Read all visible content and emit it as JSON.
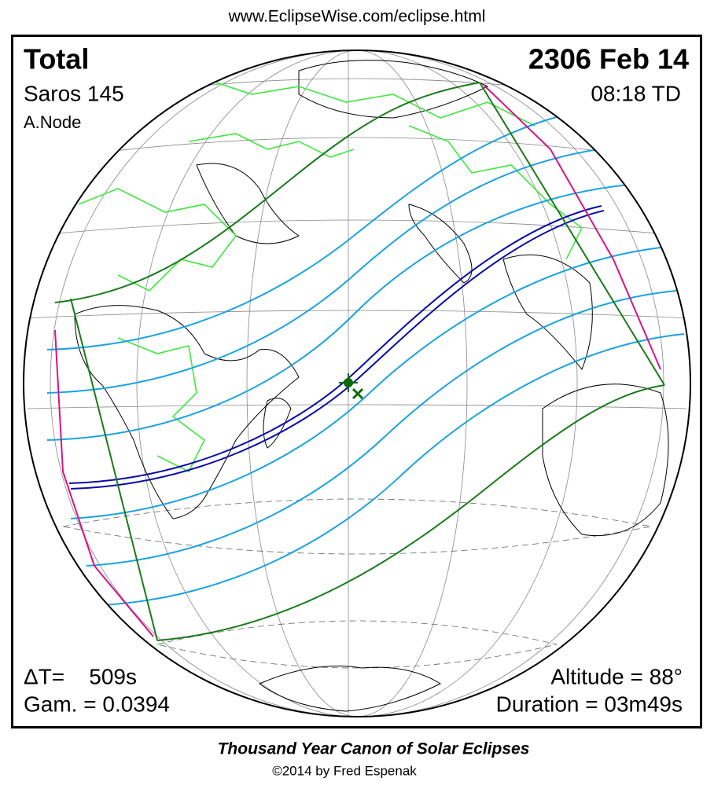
{
  "header": {
    "url": "www.EclipseWise.com/eclipse.html"
  },
  "eclipse": {
    "type": "Total",
    "date": "2306 Feb 14",
    "saros": "Saros 145",
    "time": "08:18 TD",
    "node": "A.Node",
    "delta_t": "ΔT=    509s",
    "gamma": "Gam. = 0.0394",
    "altitude": "Altitude = 88°",
    "duration": "Duration = 03m49s"
  },
  "footer": {
    "title": "Thousand Year Canon of Solar Eclipses",
    "copyright": "©2014 by Fred Espenak"
  }
}
